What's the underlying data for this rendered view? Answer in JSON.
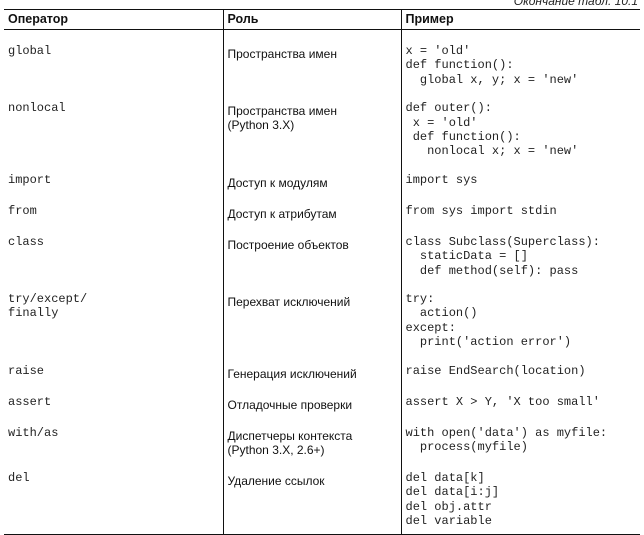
{
  "caption": "Окончание табл. 10.1",
  "columns": [
    "Оператор",
    "Роль",
    "Пример"
  ],
  "rows": [
    {
      "op": "global",
      "role": "Пространства имен",
      "ex": "x = 'old'\ndef function():\n  global x, y; x = 'new'"
    },
    {
      "op": "nonlocal",
      "role": "Пространства имен\n(Python 3.X)",
      "ex": "def outer():\n x = 'old'\n def function():\n   nonlocal x; x = 'new'"
    },
    {
      "op": "import",
      "role": "Доступ к модулям",
      "ex": "import sys"
    },
    {
      "op": "from",
      "role": "Доступ к атрибутам",
      "ex": "from sys import stdin"
    },
    {
      "op": "class",
      "role": "Построение объектов",
      "ex": "class Subclass(Superclass):\n  staticData = []\n  def method(self): pass"
    },
    {
      "op": "try/except/\nfinally",
      "role": "Перехват исключений",
      "ex": "try:\n  action()\nexcept:\n  print('action error')"
    },
    {
      "op": "raise",
      "role": "Генерация исключений",
      "ex": "raise EndSearch(location)"
    },
    {
      "op": "assert",
      "role": "Отладочные проверки",
      "ex": "assert X > Y, 'X too small'"
    },
    {
      "op": "with/as",
      "role": "Диспетчеры контекста\n(Python 3.X, 2.6+)",
      "ex": "with open('data') as myfile:\n  process(myfile)"
    },
    {
      "op": "del",
      "role": "Удаление ссылок",
      "ex": "del data[k]\ndel data[i:j]\ndel obj.attr\ndel variable"
    }
  ]
}
